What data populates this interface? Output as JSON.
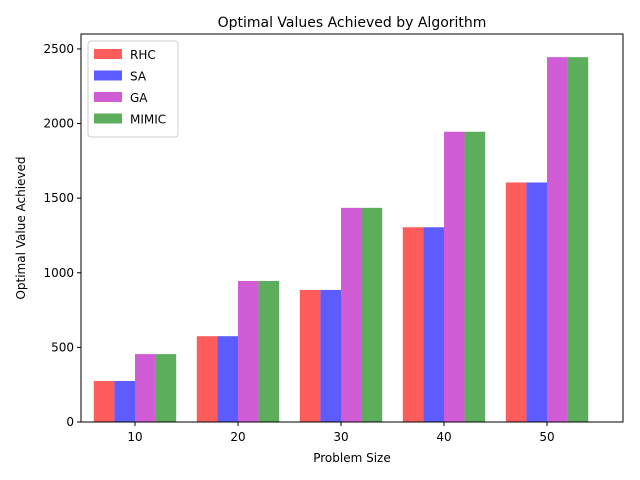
{
  "chart_data": {
    "type": "bar",
    "title": "Optimal Values Achieved by Algorithm",
    "xlabel": "Problem Size",
    "ylabel": "Optimal Value Achieved",
    "categories": [
      "10",
      "20",
      "30",
      "40",
      "50"
    ],
    "ylim": [
      0,
      2600
    ],
    "yticks": [
      0,
      500,
      1000,
      1500,
      2000,
      2500
    ],
    "grid": false,
    "legend_position": "top-left",
    "series": [
      {
        "name": "RHC",
        "color": "#ff3333",
        "values": [
          275,
          575,
          885,
          1305,
          1605
        ]
      },
      {
        "name": "SA",
        "color": "#3333ff",
        "values": [
          275,
          575,
          885,
          1305,
          1605
        ]
      },
      {
        "name": "GA",
        "color": "#c433cc",
        "values": [
          455,
          945,
          1435,
          1945,
          2445
        ]
      },
      {
        "name": "MIMIC",
        "color": "#339933",
        "values": [
          455,
          945,
          1435,
          1945,
          2445
        ]
      }
    ]
  }
}
